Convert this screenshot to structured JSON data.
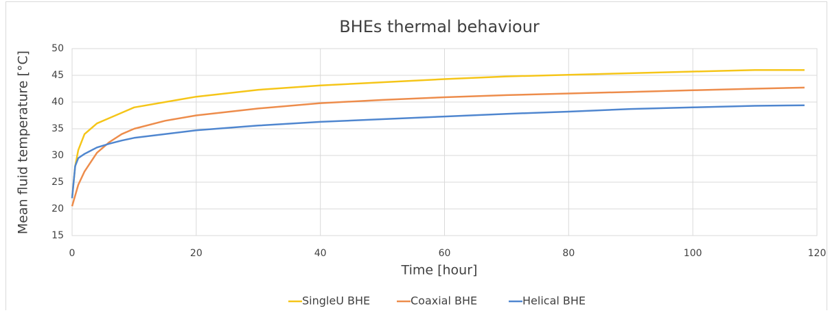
{
  "chart_data": {
    "type": "line",
    "title": "BHEs thermal behaviour",
    "x_label": "Time [hour]",
    "y_label": "Mean fluid temperature [°C]",
    "x": [
      0,
      0.5,
      1,
      2,
      4,
      6,
      8,
      10,
      15,
      20,
      30,
      40,
      50,
      60,
      70,
      80,
      90,
      100,
      110,
      118
    ],
    "series": [
      {
        "name": "SingleU BHE",
        "color": "#f5c518",
        "values": [
          22,
          28,
          31,
          34,
          36,
          37,
          38,
          39,
          40,
          41,
          42.3,
          43.1,
          43.7,
          44.3,
          44.8,
          45.1,
          45.4,
          45.7,
          46,
          46
        ]
      },
      {
        "name": "Coaxial BHE",
        "color": "#ed8c4b",
        "values": [
          20.5,
          22.5,
          24.5,
          27,
          30.5,
          32.5,
          34,
          35,
          36.5,
          37.5,
          38.8,
          39.8,
          40.4,
          40.9,
          41.3,
          41.6,
          41.9,
          42.2,
          42.5,
          42.7
        ]
      },
      {
        "name": "Helical BHE",
        "color": "#4f86cf",
        "values": [
          22,
          28,
          29.5,
          30.3,
          31.5,
          32.2,
          32.8,
          33.3,
          34,
          34.7,
          35.6,
          36.3,
          36.8,
          37.3,
          37.8,
          38.2,
          38.7,
          39,
          39.3,
          39.4
        ]
      }
    ],
    "xlim": [
      0,
      120
    ],
    "xticks": [
      0,
      20,
      40,
      60,
      80,
      100,
      120
    ],
    "ylim": [
      15,
      50
    ],
    "yticks": [
      15,
      20,
      25,
      30,
      35,
      40,
      45,
      50
    ],
    "grid": true,
    "legend": "bottom"
  }
}
